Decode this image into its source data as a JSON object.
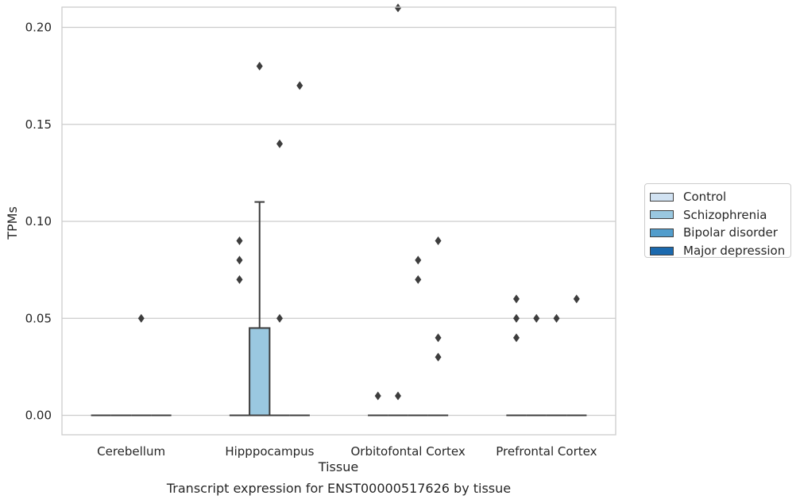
{
  "chart_data": {
    "type": "box",
    "caption": "Transcript expression for ENST00000517626 by tissue",
    "xlabel": "Tissue",
    "ylabel": "TPMs",
    "ylim": [
      -0.01,
      0.22
    ],
    "yticks": [
      "0.00",
      "0.05",
      "0.10",
      "0.15",
      "0.20"
    ],
    "ytick_values": [
      0,
      0.05,
      0.1,
      0.15,
      0.2
    ],
    "grid": true,
    "legend_position": "right",
    "categories": [
      "Cerebellum",
      "Hipppocampus",
      "Orbitofontal Cortex",
      "Prefrontal Cortex"
    ],
    "series": [
      {
        "name": "Control",
        "color": "#d1e2f2"
      },
      {
        "name": "Schizophrenia",
        "color": "#9ac8e0"
      },
      {
        "name": "Bipolar disorder",
        "color": "#529dcc"
      },
      {
        "name": "Major depression",
        "color": "#1b69ae"
      }
    ],
    "boxes": [
      {
        "category": "Cerebellum",
        "series": "Control",
        "q1": 0,
        "median": 0,
        "q3": 0,
        "whisker_low": 0,
        "whisker_high": 0,
        "outliers": []
      },
      {
        "category": "Cerebellum",
        "series": "Schizophrenia",
        "q1": 0,
        "median": 0,
        "q3": 0,
        "whisker_low": 0,
        "whisker_high": 0,
        "outliers": []
      },
      {
        "category": "Cerebellum",
        "series": "Bipolar disorder",
        "q1": 0,
        "median": 0,
        "q3": 0,
        "whisker_low": 0,
        "whisker_high": 0,
        "outliers": [
          0.05
        ]
      },
      {
        "category": "Cerebellum",
        "series": "Major depression",
        "q1": 0,
        "median": 0,
        "q3": 0,
        "whisker_low": 0,
        "whisker_high": 0,
        "outliers": []
      },
      {
        "category": "Hipppocampus",
        "series": "Control",
        "q1": 0,
        "median": 0,
        "q3": 0,
        "whisker_low": 0,
        "whisker_high": 0,
        "outliers": [
          0.07,
          0.08,
          0.09
        ]
      },
      {
        "category": "Hipppocampus",
        "series": "Schizophrenia",
        "q1": 0,
        "median": 0,
        "q3": 0.045,
        "whisker_low": 0,
        "whisker_high": 0.11,
        "outliers": [
          0.18
        ]
      },
      {
        "category": "Hipppocampus",
        "series": "Bipolar disorder",
        "q1": 0,
        "median": 0,
        "q3": 0,
        "whisker_low": 0,
        "whisker_high": 0,
        "outliers": [
          0.05,
          0.14
        ]
      },
      {
        "category": "Hipppocampus",
        "series": "Major depression",
        "q1": 0,
        "median": 0,
        "q3": 0,
        "whisker_low": 0,
        "whisker_high": 0,
        "outliers": [
          0.17
        ]
      },
      {
        "category": "Orbitofontal Cortex",
        "series": "Control",
        "q1": 0,
        "median": 0,
        "q3": 0,
        "whisker_low": 0,
        "whisker_high": 0,
        "outliers": [
          0.01
        ]
      },
      {
        "category": "Orbitofontal Cortex",
        "series": "Schizophrenia",
        "q1": 0,
        "median": 0,
        "q3": 0,
        "whisker_low": 0,
        "whisker_high": 0,
        "outliers": [
          0.01,
          0.21
        ]
      },
      {
        "category": "Orbitofontal Cortex",
        "series": "Bipolar disorder",
        "q1": 0,
        "median": 0,
        "q3": 0,
        "whisker_low": 0,
        "whisker_high": 0,
        "outliers": [
          0.07,
          0.08
        ]
      },
      {
        "category": "Orbitofontal Cortex",
        "series": "Major depression",
        "q1": 0,
        "median": 0,
        "q3": 0,
        "whisker_low": 0,
        "whisker_high": 0,
        "outliers": [
          0.03,
          0.04,
          0.09
        ]
      },
      {
        "category": "Prefrontal Cortex",
        "series": "Control",
        "q1": 0,
        "median": 0,
        "q3": 0,
        "whisker_low": 0,
        "whisker_high": 0,
        "outliers": [
          0.04,
          0.05,
          0.06
        ]
      },
      {
        "category": "Prefrontal Cortex",
        "series": "Schizophrenia",
        "q1": 0,
        "median": 0,
        "q3": 0,
        "whisker_low": 0,
        "whisker_high": 0,
        "outliers": [
          0.05
        ]
      },
      {
        "category": "Prefrontal Cortex",
        "series": "Bipolar disorder",
        "q1": 0,
        "median": 0,
        "q3": 0,
        "whisker_low": 0,
        "whisker_high": 0,
        "outliers": [
          0.05
        ]
      },
      {
        "category": "Prefrontal Cortex",
        "series": "Major depression",
        "q1": 0,
        "median": 0,
        "q3": 0,
        "whisker_low": 0,
        "whisker_high": 0,
        "outliers": [
          0.06
        ]
      }
    ]
  }
}
